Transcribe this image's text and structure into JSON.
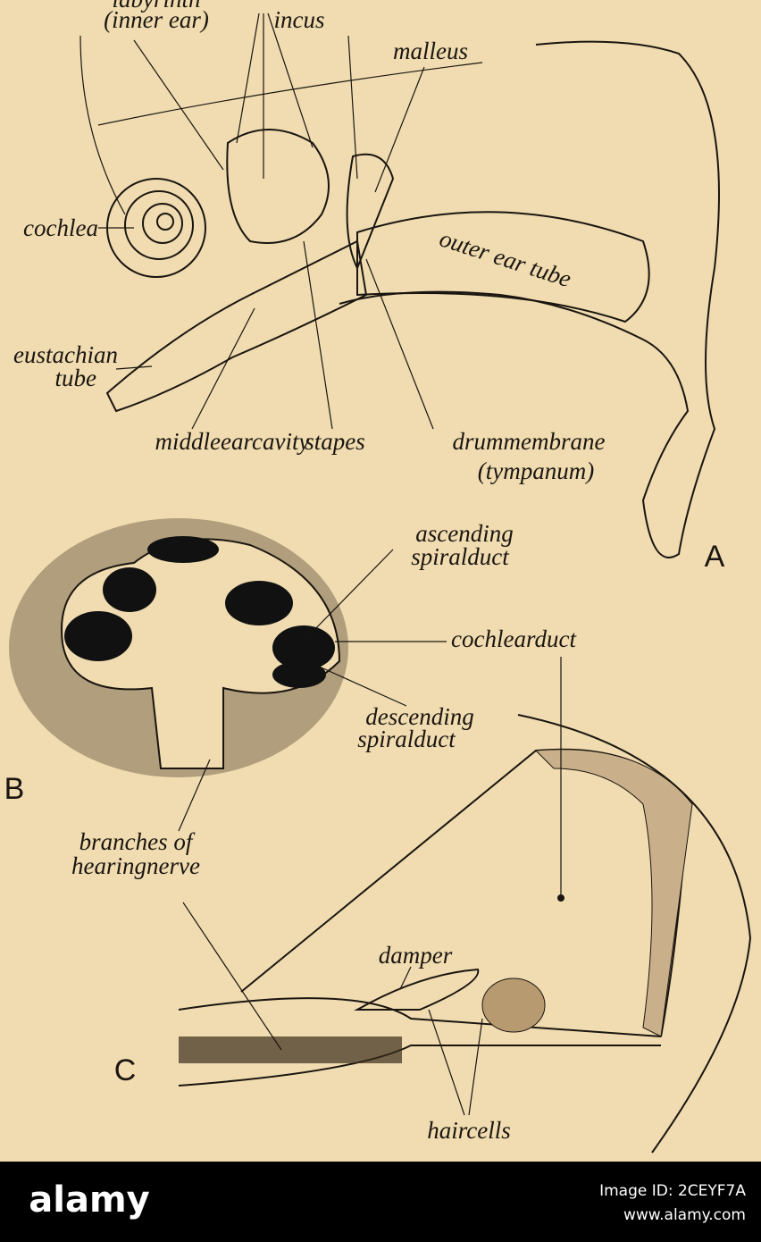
{
  "figure": {
    "panel_a": {
      "letter": "A",
      "labels": {
        "labyrinth": "labyrinth",
        "inner_ear": "(inner ear)",
        "incus": "incus",
        "malleus": "malleus",
        "cochlea": "cochlea",
        "eustachian": "eustachian",
        "tube": "tube",
        "middle_ear_cavity": "middleearcavity",
        "stapes": "stapes",
        "drum_membrane": "drummembrane",
        "tympanum": "(tympanum)",
        "outer_ear_tube": "outer ear tube"
      }
    },
    "panel_b": {
      "letter": "B",
      "labels": {
        "ascending": "ascending",
        "ascending_2": "spiralduct",
        "cochlear_duct": "cochlearduct",
        "descending": "descending",
        "descending_2": "spiralduct"
      }
    },
    "panel_c": {
      "letter": "C",
      "labels": {
        "branches": "branches of",
        "hearing_nerve": "hearingnerve",
        "damper": "damper",
        "hair_cells": "haircells"
      }
    }
  },
  "footer": {
    "brand": "alamy",
    "image_id": "Image ID: 2CEYF7A",
    "url": "www.alamy.com"
  }
}
